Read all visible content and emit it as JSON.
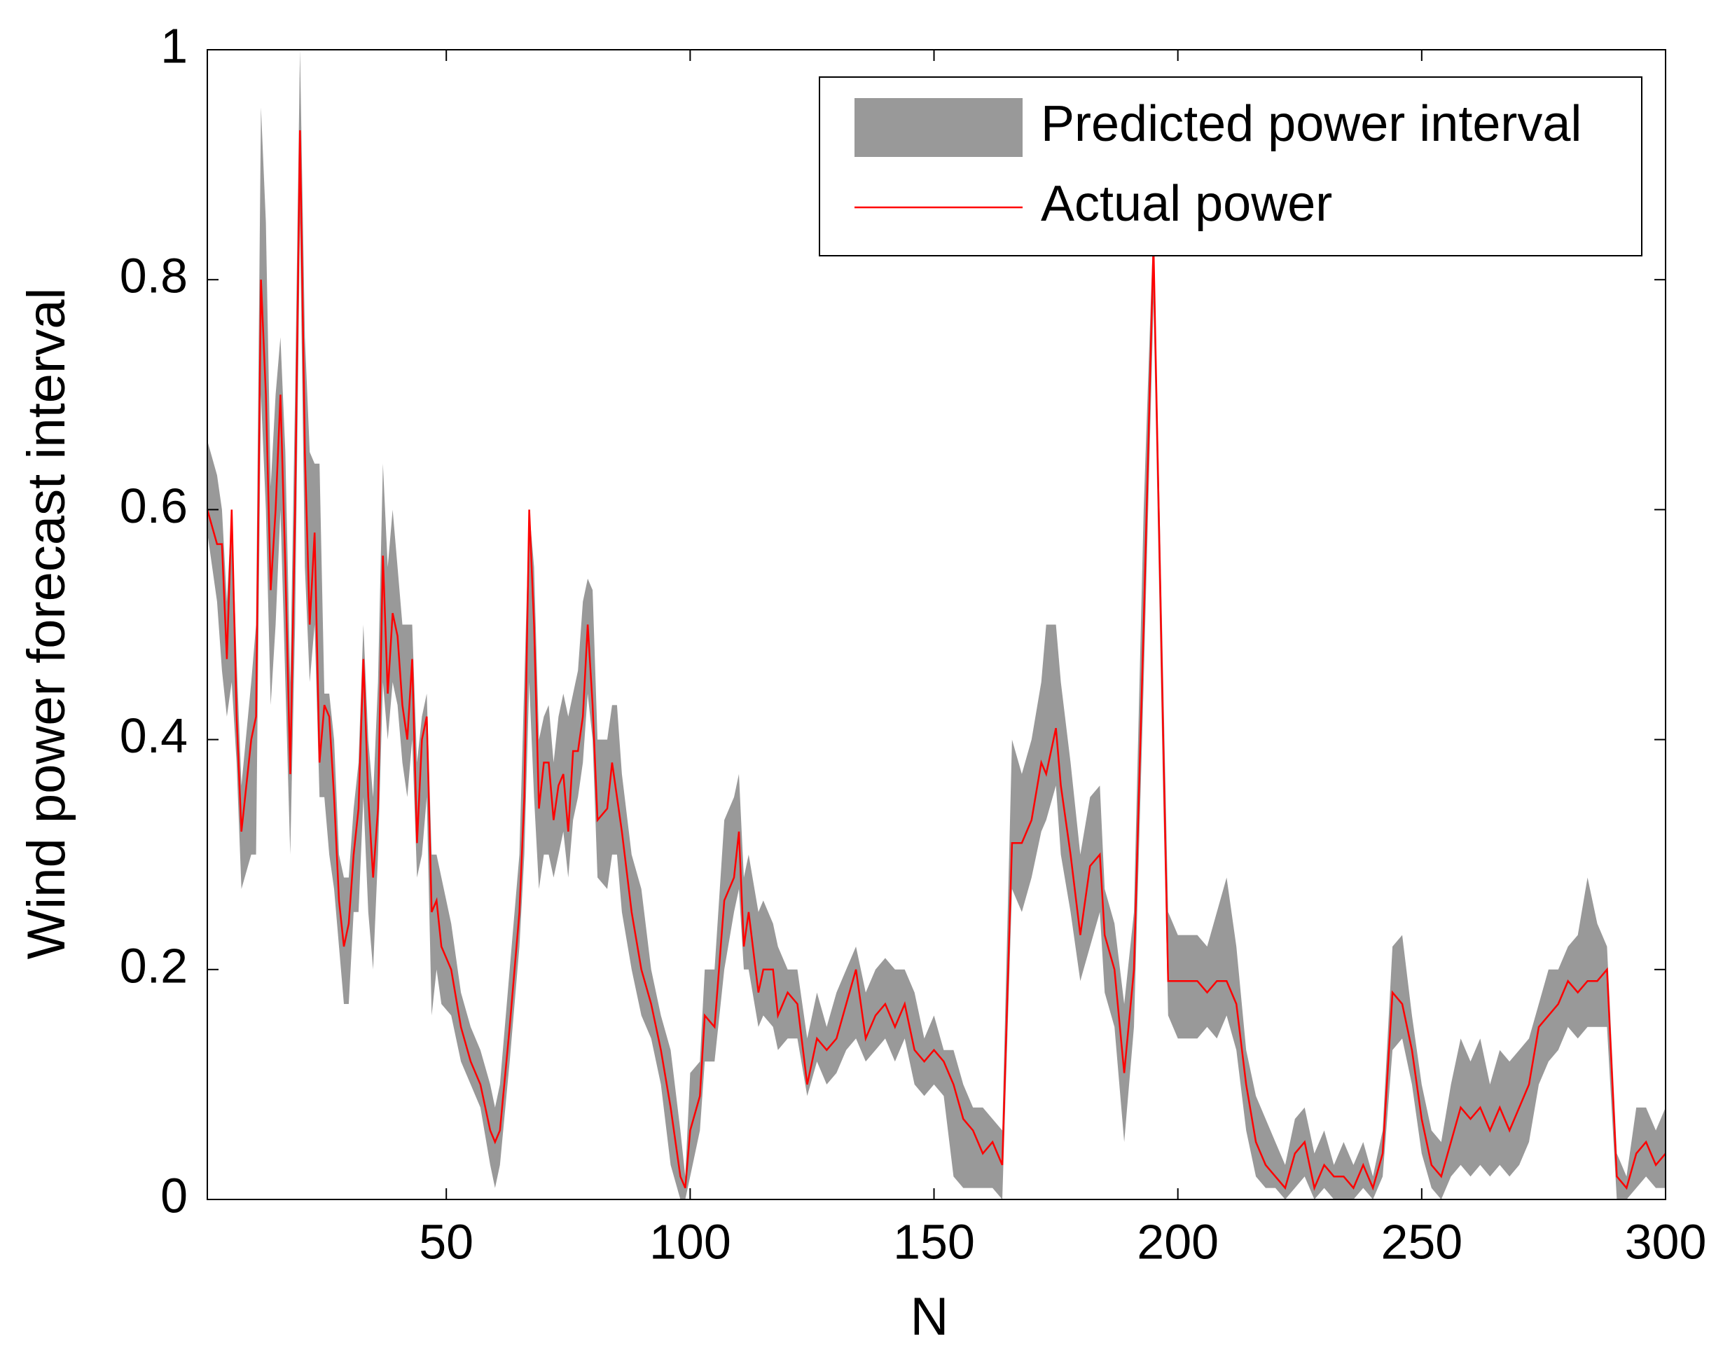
{
  "chart_data": {
    "type": "line",
    "xlabel": "N",
    "ylabel": "Wind power forecast interval",
    "xlim": [
      1,
      300
    ],
    "ylim": [
      0,
      1
    ],
    "xticks": [
      50,
      100,
      150,
      200,
      250,
      300
    ],
    "yticks": [
      0,
      0.2,
      0.4,
      0.6,
      0.8,
      1
    ],
    "legend": "upper right",
    "x": [
      1,
      3,
      4,
      5,
      6,
      7,
      8,
      10,
      11,
      12,
      13,
      14,
      15,
      16,
      17,
      18,
      19,
      20,
      21,
      22,
      23,
      24,
      25,
      26,
      27,
      28,
      29,
      30,
      31,
      32,
      33,
      34,
      35,
      36,
      37,
      38,
      39,
      40,
      41,
      42,
      43,
      44,
      45,
      46,
      47,
      48,
      49,
      51,
      53,
      55,
      57,
      59,
      60,
      61,
      63,
      65,
      66,
      67,
      68,
      69,
      70,
      71,
      72,
      73,
      74,
      75,
      76,
      77,
      78,
      79,
      80,
      81,
      83,
      84,
      85,
      86,
      88,
      90,
      92,
      94,
      96,
      98,
      99,
      100,
      102,
      103,
      105,
      107,
      109,
      110,
      111,
      112,
      114,
      115,
      117,
      118,
      120,
      122,
      124,
      126,
      128,
      130,
      132,
      134,
      136,
      138,
      140,
      142,
      144,
      146,
      148,
      150,
      152,
      154,
      156,
      158,
      160,
      162,
      164,
      166,
      168,
      170,
      172,
      173,
      175,
      176,
      178,
      180,
      182,
      184,
      185,
      187,
      189,
      191,
      193,
      195,
      197,
      198,
      200,
      202,
      204,
      206,
      208,
      210,
      212,
      214,
      216,
      218,
      220,
      222,
      224,
      226,
      228,
      230,
      232,
      234,
      236,
      238,
      240,
      242,
      244,
      246,
      248,
      250,
      252,
      254,
      256,
      258,
      260,
      262,
      264,
      266,
      268,
      270,
      272,
      274,
      276,
      278,
      280,
      282,
      284,
      286,
      288,
      290,
      292,
      294,
      296,
      298,
      300
    ],
    "series": [
      {
        "name": "Predicted power interval",
        "color": "#999999",
        "lower": [
          0.58,
          0.52,
          0.46,
          0.42,
          0.45,
          0.38,
          0.27,
          0.3,
          0.3,
          0.7,
          0.6,
          0.43,
          0.5,
          0.6,
          0.45,
          0.3,
          0.5,
          0.85,
          0.55,
          0.45,
          0.5,
          0.35,
          0.35,
          0.3,
          0.27,
          0.22,
          0.17,
          0.17,
          0.25,
          0.25,
          0.35,
          0.25,
          0.2,
          0.3,
          0.45,
          0.4,
          0.45,
          0.43,
          0.38,
          0.35,
          0.4,
          0.28,
          0.3,
          0.35,
          0.16,
          0.2,
          0.17,
          0.16,
          0.12,
          0.1,
          0.08,
          0.03,
          0.01,
          0.03,
          0.12,
          0.22,
          0.3,
          0.45,
          0.35,
          0.27,
          0.3,
          0.3,
          0.28,
          0.3,
          0.32,
          0.28,
          0.33,
          0.35,
          0.38,
          0.44,
          0.4,
          0.28,
          0.27,
          0.3,
          0.3,
          0.25,
          0.2,
          0.16,
          0.14,
          0.1,
          0.03,
          0.0,
          0.0,
          0.02,
          0.06,
          0.12,
          0.12,
          0.2,
          0.25,
          0.27,
          0.2,
          0.2,
          0.15,
          0.16,
          0.15,
          0.13,
          0.14,
          0.14,
          0.09,
          0.12,
          0.1,
          0.11,
          0.13,
          0.14,
          0.12,
          0.13,
          0.14,
          0.12,
          0.14,
          0.1,
          0.09,
          0.1,
          0.09,
          0.02,
          0.01,
          0.01,
          0.01,
          0.01,
          0.0,
          0.27,
          0.25,
          0.28,
          0.32,
          0.33,
          0.36,
          0.3,
          0.25,
          0.19,
          0.22,
          0.25,
          0.18,
          0.15,
          0.05,
          0.15,
          0.45,
          0.78,
          0.35,
          0.16,
          0.14,
          0.14,
          0.14,
          0.15,
          0.14,
          0.16,
          0.13,
          0.06,
          0.02,
          0.01,
          0.01,
          0.0,
          0.01,
          0.02,
          0.0,
          0.01,
          0.0,
          0.0,
          0.0,
          0.01,
          0.0,
          0.02,
          0.13,
          0.14,
          0.1,
          0.04,
          0.01,
          0.0,
          0.02,
          0.03,
          0.02,
          0.03,
          0.02,
          0.03,
          0.02,
          0.03,
          0.05,
          0.1,
          0.12,
          0.13,
          0.15,
          0.14,
          0.15,
          0.15,
          0.15,
          0.0,
          0.0,
          0.01,
          0.02,
          0.01,
          0.01
        ],
        "upper": [
          0.66,
          0.63,
          0.6,
          0.52,
          0.6,
          0.47,
          0.36,
          0.45,
          0.5,
          0.95,
          0.85,
          0.62,
          0.7,
          0.75,
          0.65,
          0.45,
          0.7,
          1.0,
          0.75,
          0.65,
          0.64,
          0.64,
          0.44,
          0.44,
          0.4,
          0.3,
          0.28,
          0.28,
          0.34,
          0.38,
          0.5,
          0.4,
          0.35,
          0.45,
          0.64,
          0.55,
          0.6,
          0.55,
          0.5,
          0.5,
          0.5,
          0.38,
          0.42,
          0.44,
          0.3,
          0.3,
          0.28,
          0.24,
          0.18,
          0.15,
          0.13,
          0.1,
          0.08,
          0.1,
          0.2,
          0.3,
          0.45,
          0.6,
          0.55,
          0.4,
          0.42,
          0.43,
          0.38,
          0.42,
          0.44,
          0.42,
          0.44,
          0.46,
          0.52,
          0.54,
          0.53,
          0.4,
          0.4,
          0.43,
          0.43,
          0.37,
          0.3,
          0.27,
          0.2,
          0.16,
          0.13,
          0.06,
          0.02,
          0.11,
          0.12,
          0.2,
          0.2,
          0.33,
          0.35,
          0.37,
          0.28,
          0.3,
          0.25,
          0.26,
          0.24,
          0.22,
          0.2,
          0.2,
          0.14,
          0.18,
          0.15,
          0.18,
          0.2,
          0.22,
          0.18,
          0.2,
          0.21,
          0.2,
          0.2,
          0.18,
          0.14,
          0.16,
          0.13,
          0.13,
          0.1,
          0.08,
          0.08,
          0.07,
          0.06,
          0.4,
          0.37,
          0.4,
          0.45,
          0.5,
          0.5,
          0.45,
          0.38,
          0.3,
          0.35,
          0.36,
          0.27,
          0.24,
          0.17,
          0.25,
          0.6,
          0.85,
          0.45,
          0.25,
          0.23,
          0.23,
          0.23,
          0.22,
          0.25,
          0.28,
          0.22,
          0.13,
          0.09,
          0.07,
          0.05,
          0.03,
          0.07,
          0.08,
          0.04,
          0.06,
          0.03,
          0.05,
          0.03,
          0.05,
          0.02,
          0.06,
          0.22,
          0.23,
          0.16,
          0.1,
          0.06,
          0.05,
          0.1,
          0.14,
          0.12,
          0.14,
          0.1,
          0.13,
          0.12,
          0.13,
          0.14,
          0.17,
          0.2,
          0.2,
          0.22,
          0.23,
          0.28,
          0.24,
          0.22,
          0.04,
          0.02,
          0.08,
          0.08,
          0.06,
          0.08
        ]
      },
      {
        "name": "Actual power",
        "color": "#ff0000",
        "values": [
          0.6,
          0.57,
          0.57,
          0.47,
          0.6,
          0.42,
          0.32,
          0.4,
          0.42,
          0.8,
          0.7,
          0.53,
          0.6,
          0.7,
          0.55,
          0.37,
          0.6,
          0.93,
          0.65,
          0.5,
          0.58,
          0.38,
          0.43,
          0.42,
          0.35,
          0.26,
          0.22,
          0.24,
          0.3,
          0.34,
          0.47,
          0.35,
          0.28,
          0.34,
          0.56,
          0.44,
          0.51,
          0.49,
          0.43,
          0.4,
          0.47,
          0.31,
          0.4,
          0.42,
          0.25,
          0.26,
          0.22,
          0.2,
          0.15,
          0.12,
          0.1,
          0.06,
          0.05,
          0.06,
          0.15,
          0.25,
          0.35,
          0.6,
          0.5,
          0.34,
          0.38,
          0.38,
          0.33,
          0.36,
          0.37,
          0.32,
          0.39,
          0.39,
          0.42,
          0.5,
          0.43,
          0.33,
          0.34,
          0.38,
          0.35,
          0.32,
          0.25,
          0.2,
          0.17,
          0.13,
          0.08,
          0.02,
          0.01,
          0.06,
          0.09,
          0.16,
          0.15,
          0.26,
          0.28,
          0.32,
          0.22,
          0.25,
          0.18,
          0.2,
          0.2,
          0.16,
          0.18,
          0.17,
          0.1,
          0.14,
          0.13,
          0.14,
          0.17,
          0.2,
          0.14,
          0.16,
          0.17,
          0.15,
          0.17,
          0.13,
          0.12,
          0.13,
          0.12,
          0.1,
          0.07,
          0.06,
          0.04,
          0.05,
          0.03,
          0.31,
          0.31,
          0.33,
          0.38,
          0.37,
          0.41,
          0.36,
          0.3,
          0.23,
          0.29,
          0.3,
          0.23,
          0.2,
          0.11,
          0.2,
          0.5,
          0.83,
          0.4,
          0.19,
          0.19,
          0.19,
          0.19,
          0.18,
          0.19,
          0.19,
          0.17,
          0.1,
          0.05,
          0.03,
          0.02,
          0.01,
          0.04,
          0.05,
          0.01,
          0.03,
          0.02,
          0.02,
          0.01,
          0.03,
          0.01,
          0.04,
          0.18,
          0.17,
          0.13,
          0.07,
          0.03,
          0.02,
          0.05,
          0.08,
          0.07,
          0.08,
          0.06,
          0.08,
          0.06,
          0.08,
          0.1,
          0.15,
          0.16,
          0.17,
          0.19,
          0.18,
          0.19,
          0.19,
          0.2,
          0.02,
          0.01,
          0.04,
          0.05,
          0.03,
          0.04
        ]
      }
    ]
  }
}
